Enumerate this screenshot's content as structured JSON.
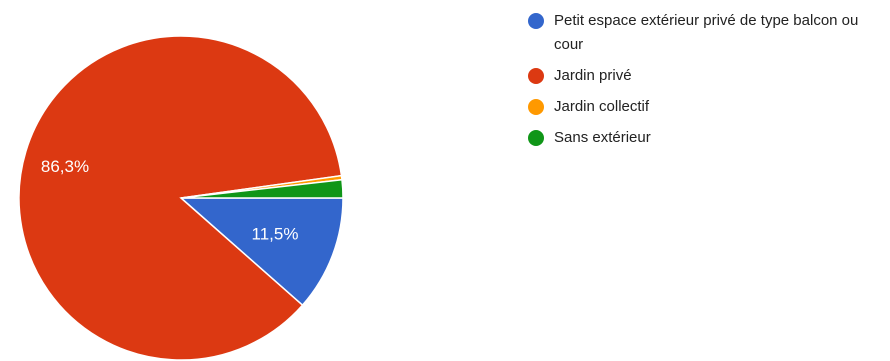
{
  "chart_data": {
    "type": "pie",
    "title": "",
    "categories": [
      "Petit espace extérieur privé de type balcon ou cour",
      "Jardin privé",
      "Jardin collectif",
      "Sans extérieur"
    ],
    "values": [
      11.5,
      86.3,
      0.4,
      1.8
    ],
    "colors": [
      "#3366cc",
      "#dc3912",
      "#ff9900",
      "#109618"
    ],
    "labels": [
      "11,5%",
      "86,3%",
      "",
      ""
    ],
    "legend_position": "right"
  }
}
